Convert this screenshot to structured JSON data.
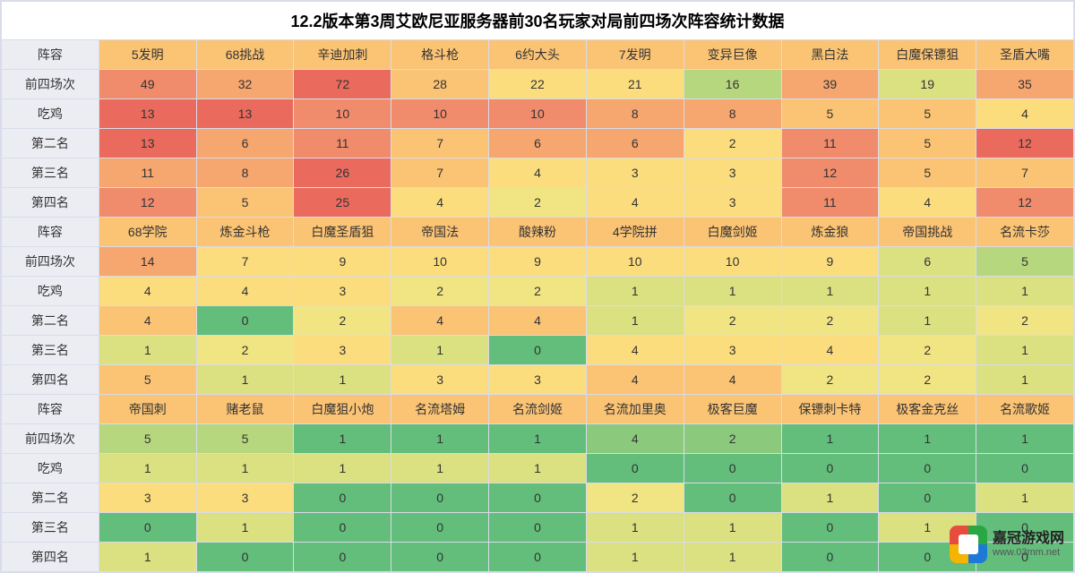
{
  "title": "12.2版本第3周艾欧尼亚服务器前30名玩家对局前四场次阵容统计数据",
  "title_fontsize": 18,
  "border_color": "#d9dcea",
  "label_bg": "#ecedf3",
  "text_color": "#333333",
  "heat_colors": {
    "dark_red": "#ea6b5e",
    "red": "#f08b6c",
    "orange": "#f6a66f",
    "lt_orange": "#fbc374",
    "yellow": "#fcdd7e",
    "lt_yellow": "#f1e483",
    "yel_green": "#dbe081",
    "lt_green": "#b7d77e",
    "green": "#8bca7d",
    "dark_green": "#63bd7b"
  },
  "row_headers": [
    "阵容",
    "前四场次",
    "吃鸡",
    "第二名",
    "第三名",
    "第四名"
  ],
  "sections": [
    {
      "comps": [
        "5发明",
        "68挑战",
        "辛迪加刺",
        "格斗枪",
        "6约大头",
        "7发明",
        "变异巨像",
        "黑白法",
        "白魔保镖狙",
        "圣盾大嘴"
      ],
      "comp_bg": [
        "lt_orange",
        "lt_orange",
        "lt_orange",
        "lt_orange",
        "lt_orange",
        "lt_orange",
        "lt_orange",
        "lt_orange",
        "lt_orange",
        "lt_orange"
      ],
      "rows": [
        {
          "values": [
            49,
            32,
            72,
            28,
            22,
            21,
            16,
            39,
            19,
            35
          ],
          "colors": [
            "red",
            "orange",
            "dark_red",
            "lt_orange",
            "yellow",
            "yellow",
            "lt_green",
            "orange",
            "yel_green",
            "orange"
          ]
        },
        {
          "values": [
            13,
            13,
            10,
            10,
            10,
            8,
            8,
            5,
            5,
            4
          ],
          "colors": [
            "dark_red",
            "dark_red",
            "red",
            "red",
            "red",
            "orange",
            "orange",
            "lt_orange",
            "lt_orange",
            "yellow"
          ]
        },
        {
          "values": [
            13,
            6,
            11,
            7,
            6,
            6,
            2,
            11,
            5,
            12
          ],
          "colors": [
            "dark_red",
            "orange",
            "red",
            "lt_orange",
            "orange",
            "orange",
            "yellow",
            "red",
            "lt_orange",
            "dark_red"
          ]
        },
        {
          "values": [
            11,
            8,
            26,
            7,
            4,
            3,
            3,
            12,
            5,
            7
          ],
          "colors": [
            "orange",
            "orange",
            "dark_red",
            "lt_orange",
            "yellow",
            "yellow",
            "yellow",
            "red",
            "lt_orange",
            "lt_orange"
          ]
        },
        {
          "values": [
            12,
            5,
            25,
            4,
            2,
            4,
            3,
            11,
            4,
            12
          ],
          "colors": [
            "red",
            "lt_orange",
            "dark_red",
            "yellow",
            "lt_yellow",
            "yellow",
            "yellow",
            "red",
            "yellow",
            "red"
          ]
        }
      ]
    },
    {
      "comps": [
        "68学院",
        "炼金斗枪",
        "白魔圣盾狙",
        "帝国法",
        "酸辣粉",
        "4学院拼",
        "白魔剑姬",
        "炼金狼",
        "帝国挑战",
        "名流卡莎"
      ],
      "comp_bg": [
        "lt_orange",
        "lt_orange",
        "lt_orange",
        "lt_orange",
        "lt_orange",
        "lt_orange",
        "lt_orange",
        "lt_orange",
        "lt_orange",
        "lt_orange"
      ],
      "rows": [
        {
          "values": [
            14,
            7,
            9,
            10,
            9,
            10,
            10,
            9,
            6,
            5
          ],
          "colors": [
            "orange",
            "yellow",
            "yellow",
            "yellow",
            "yellow",
            "yellow",
            "yellow",
            "yellow",
            "yel_green",
            "lt_green"
          ]
        },
        {
          "values": [
            4,
            4,
            3,
            2,
            2,
            1,
            1,
            1,
            1,
            1
          ],
          "colors": [
            "yellow",
            "yellow",
            "yellow",
            "lt_yellow",
            "lt_yellow",
            "yel_green",
            "yel_green",
            "yel_green",
            "yel_green",
            "yel_green"
          ]
        },
        {
          "values": [
            4,
            0,
            2,
            4,
            4,
            1,
            2,
            2,
            1,
            2
          ],
          "colors": [
            "lt_orange",
            "dark_green",
            "lt_yellow",
            "lt_orange",
            "lt_orange",
            "yel_green",
            "lt_yellow",
            "lt_yellow",
            "yel_green",
            "lt_yellow"
          ]
        },
        {
          "values": [
            1,
            2,
            3,
            1,
            0,
            4,
            3,
            4,
            2,
            1
          ],
          "colors": [
            "yel_green",
            "lt_yellow",
            "yellow",
            "yel_green",
            "dark_green",
            "yellow",
            "yellow",
            "yellow",
            "lt_yellow",
            "yel_green"
          ]
        },
        {
          "values": [
            5,
            1,
            1,
            3,
            3,
            4,
            4,
            2,
            2,
            1
          ],
          "colors": [
            "lt_orange",
            "yel_green",
            "yel_green",
            "yellow",
            "yellow",
            "lt_orange",
            "lt_orange",
            "lt_yellow",
            "lt_yellow",
            "yel_green"
          ]
        }
      ]
    },
    {
      "comps": [
        "帝国刺",
        "赌老鼠",
        "白魔狙小炮",
        "名流塔姆",
        "名流剑姬",
        "名流加里奥",
        "极客巨魔",
        "保镖刺卡特",
        "极客金克丝",
        "名流歌姬"
      ],
      "comp_bg": [
        "lt_orange",
        "lt_orange",
        "lt_orange",
        "lt_orange",
        "lt_orange",
        "lt_orange",
        "lt_orange",
        "lt_orange",
        "lt_orange",
        "lt_orange"
      ],
      "rows": [
        {
          "values": [
            5,
            5,
            1,
            1,
            1,
            4,
            2,
            1,
            1,
            1
          ],
          "colors": [
            "lt_green",
            "lt_green",
            "dark_green",
            "dark_green",
            "dark_green",
            "green",
            "green",
            "dark_green",
            "dark_green",
            "dark_green"
          ]
        },
        {
          "values": [
            1,
            1,
            1,
            1,
            1,
            0,
            0,
            0,
            0,
            0
          ],
          "colors": [
            "yel_green",
            "yel_green",
            "yel_green",
            "yel_green",
            "yel_green",
            "dark_green",
            "dark_green",
            "dark_green",
            "dark_green",
            "dark_green"
          ]
        },
        {
          "values": [
            3,
            3,
            0,
            0,
            0,
            2,
            0,
            1,
            0,
            1
          ],
          "colors": [
            "yellow",
            "yellow",
            "dark_green",
            "dark_green",
            "dark_green",
            "lt_yellow",
            "dark_green",
            "yel_green",
            "dark_green",
            "yel_green"
          ]
        },
        {
          "values": [
            0,
            1,
            0,
            0,
            0,
            1,
            1,
            0,
            1,
            0
          ],
          "colors": [
            "dark_green",
            "yel_green",
            "dark_green",
            "dark_green",
            "dark_green",
            "yel_green",
            "yel_green",
            "dark_green",
            "yel_green",
            "dark_green"
          ]
        },
        {
          "values": [
            1,
            0,
            0,
            0,
            0,
            1,
            1,
            0,
            0,
            0
          ],
          "colors": [
            "yel_green",
            "dark_green",
            "dark_green",
            "dark_green",
            "dark_green",
            "yel_green",
            "yel_green",
            "dark_green",
            "dark_green",
            "dark_green"
          ]
        }
      ]
    }
  ],
  "watermark": {
    "line1": "嘉冠游戏网",
    "line2": "www.03mm.net"
  }
}
